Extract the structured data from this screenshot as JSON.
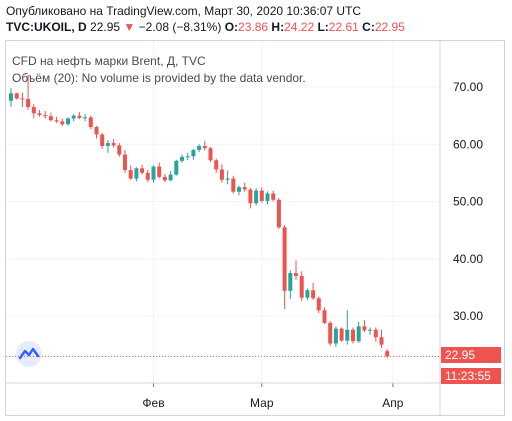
{
  "header": {
    "published": "Опубликовано на TradingView.com, Март 30, 2020 10:36:07 UTC",
    "symbol": "TVC:UKOIL, D",
    "last": "22.95",
    "change_arrow": "▼",
    "change": "−2.08 (−8.31%)",
    "o_label": "O:",
    "o_value": "23.86",
    "h_label": "H:",
    "h_value": "24.22",
    "l_label": "L:",
    "l_value": "22.61",
    "c_label": "C:",
    "c_value": "22.95"
  },
  "legend": {
    "title": "CFD на нефть марки Brent, Д, TVC",
    "volume": "Объём (20): No volume is provided by the data vendor."
  },
  "price_tag": {
    "value": "22.95",
    "countdown": "11:23:55"
  },
  "colors": {
    "up": "#26a69a",
    "down": "#ef5350",
    "grid": "#f0f3fa",
    "axis_text": "#131722",
    "logo": "#2962ff"
  },
  "logo_icon": "tradingview-cloud-icon",
  "chart_data": {
    "type": "candlestick",
    "title": "CFD на нефть марки Brent, Д, TVC",
    "y_ticks": [
      30,
      40,
      50,
      60,
      70
    ],
    "y_tick_labels": [
      "30.00",
      "40.00",
      "50.00",
      "60.00",
      "70.00"
    ],
    "ylim": [
      21,
      75
    ],
    "x_tick_labels": [
      {
        "label": "Фев",
        "index": 25
      },
      {
        "label": "Мар",
        "index": 44
      },
      {
        "label": "Апр",
        "index": 67
      }
    ],
    "last_price_line": 22.95,
    "grid": true,
    "candles": [
      [
        67.6,
        69.8,
        66.5,
        68.9
      ],
      [
        68.9,
        69.0,
        67.8,
        68.0
      ],
      [
        68.0,
        69.0,
        66.5,
        67.9
      ],
      [
        67.9,
        72.0,
        66.0,
        66.5
      ],
      [
        66.5,
        67.0,
        64.5,
        65.4
      ],
      [
        65.4,
        66.0,
        64.8,
        65.1
      ],
      [
        65.1,
        65.8,
        64.5,
        64.9
      ],
      [
        64.9,
        65.5,
        64.0,
        64.2
      ],
      [
        64.2,
        64.8,
        63.7,
        64.0
      ],
      [
        64.0,
        64.5,
        63.2,
        63.5
      ],
      [
        63.5,
        64.7,
        63.2,
        64.5
      ],
      [
        64.5,
        65.3,
        64.0,
        65.0
      ],
      [
        65.0,
        65.6,
        64.4,
        64.6
      ],
      [
        64.6,
        65.3,
        64.0,
        64.7
      ],
      [
        64.7,
        65.0,
        62.6,
        63.0
      ],
      [
        63.0,
        63.2,
        61.0,
        61.7
      ],
      [
        61.7,
        62.0,
        59.2,
        59.7
      ],
      [
        59.7,
        60.7,
        58.5,
        60.2
      ],
      [
        60.2,
        60.9,
        59.4,
        59.8
      ],
      [
        59.8,
        60.2,
        57.8,
        58.2
      ],
      [
        58.2,
        59.0,
        55.0,
        55.5
      ],
      [
        55.5,
        56.3,
        53.8,
        54.0
      ],
      [
        54.0,
        56.0,
        53.5,
        55.8
      ],
      [
        55.8,
        56.4,
        54.7,
        55.0
      ],
      [
        55.0,
        55.5,
        53.4,
        53.8
      ],
      [
        53.8,
        56.3,
        53.3,
        56.1
      ],
      [
        56.1,
        56.8,
        54.0,
        54.3
      ],
      [
        54.3,
        54.8,
        53.4,
        53.7
      ],
      [
        53.7,
        55.3,
        53.5,
        54.7
      ],
      [
        54.7,
        57.3,
        54.5,
        57.1
      ],
      [
        57.1,
        58.2,
        56.8,
        57.8
      ],
      [
        57.8,
        58.5,
        57.2,
        57.9
      ],
      [
        57.9,
        59.2,
        57.3,
        59.0
      ],
      [
        59.0,
        60.0,
        58.6,
        59.7
      ],
      [
        59.7,
        60.6,
        58.9,
        59.3
      ],
      [
        59.3,
        59.5,
        56.9,
        57.2
      ],
      [
        57.2,
        57.5,
        55.0,
        55.6
      ],
      [
        55.6,
        56.5,
        53.3,
        53.8
      ],
      [
        53.8,
        55.4,
        53.0,
        54.0
      ],
      [
        54.0,
        54.5,
        51.4,
        51.7
      ],
      [
        51.7,
        52.8,
        51.1,
        52.5
      ],
      [
        52.5,
        53.3,
        51.7,
        52.1
      ],
      [
        52.1,
        52.4,
        48.8,
        49.7
      ],
      [
        49.7,
        52.3,
        49.3,
        51.9
      ],
      [
        51.9,
        52.5,
        49.8,
        50.1
      ],
      [
        50.1,
        51.8,
        49.5,
        51.4
      ],
      [
        51.4,
        51.9,
        50.0,
        50.3
      ],
      [
        50.3,
        50.6,
        45.2,
        45.5
      ],
      [
        45.5,
        45.9,
        31.2,
        34.4
      ],
      [
        34.4,
        38.0,
        33.0,
        37.5
      ],
      [
        37.5,
        39.7,
        36.3,
        37.0
      ],
      [
        37.0,
        37.8,
        32.6,
        33.2
      ],
      [
        33.2,
        34.8,
        32.8,
        34.5
      ],
      [
        34.5,
        35.8,
        32.8,
        33.1
      ],
      [
        33.1,
        33.4,
        30.5,
        31.0
      ],
      [
        31.0,
        31.5,
        28.6,
        28.8
      ],
      [
        28.8,
        29.1,
        24.8,
        25.2
      ],
      [
        25.2,
        28.2,
        24.6,
        27.8
      ],
      [
        27.8,
        28.0,
        25.5,
        25.7
      ],
      [
        25.7,
        31.0,
        25.0,
        27.6
      ],
      [
        27.6,
        28.0,
        25.2,
        25.6
      ],
      [
        25.6,
        29.0,
        25.3,
        28.2
      ],
      [
        28.2,
        29.3,
        27.2,
        27.5
      ],
      [
        27.5,
        28.0,
        26.7,
        27.6
      ],
      [
        27.6,
        28.0,
        25.5,
        26.3
      ],
      [
        26.3,
        27.6,
        24.4,
        25.0
      ],
      [
        23.86,
        24.22,
        22.61,
        22.95
      ]
    ]
  }
}
